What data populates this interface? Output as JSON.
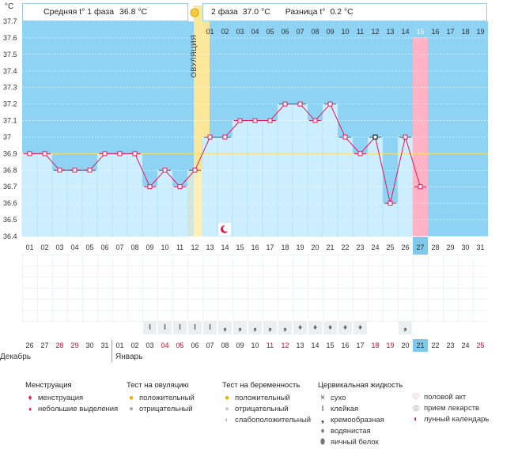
{
  "header": {
    "phase1_label": "Средняя t° 1 фаза",
    "phase1_value": "36.8 °C",
    "phase2_label": "2 фаза",
    "phase2_value": "37.0 °C",
    "diff_label": "Разница t°",
    "diff_value": "0.2 °C",
    "ovulation_label": "ОВУЛЯЦИЯ"
  },
  "chart_data": {
    "type": "line",
    "title": "",
    "unit_label": "°C",
    "ylim": [
      36.4,
      37.7
    ],
    "yticks": [
      "37.7",
      "37.6",
      "37.5",
      "37.4",
      "37.3",
      "37.2",
      "37.1",
      "37",
      "36.9",
      "36.8",
      "36.7",
      "36.6",
      "36.5",
      "36.4"
    ],
    "cycle_days": [
      "01",
      "02",
      "03",
      "04",
      "05",
      "06",
      "07",
      "08",
      "09",
      "10",
      "11",
      "12",
      "13",
      "14",
      "15",
      "16",
      "17",
      "18",
      "19",
      "20",
      "21",
      "22",
      "23",
      "24",
      "25",
      "26",
      "27",
      "28",
      "29",
      "30",
      "31"
    ],
    "ovulation_day": "12",
    "current_day": "27",
    "coverline": 36.9,
    "series": [
      {
        "name": "temperature",
        "values": [
          36.9,
          36.9,
          36.8,
          36.8,
          36.8,
          36.9,
          36.9,
          36.9,
          36.7,
          36.8,
          36.7,
          36.8,
          37.0,
          37.0,
          37.1,
          37.1,
          37.1,
          37.2,
          37.2,
          37.1,
          37.2,
          37.0,
          36.9,
          37.0,
          36.6,
          37.0,
          36.7
        ]
      }
    ],
    "phase2_days": [
      "01",
      "02",
      "03",
      "04",
      "05",
      "06",
      "07",
      "08",
      "09",
      "10",
      "11",
      "12",
      "13",
      "14",
      "15",
      "16",
      "17",
      "18",
      "19"
    ],
    "phase2_highlight": "15"
  },
  "mucus": {
    "symbols": [
      "I",
      "I",
      "I",
      "I",
      "I",
      "ɂ",
      "ɂ",
      "ɂ",
      "ɂ",
      "ɂ",
      "ʘ",
      "ʘ",
      "ʘ",
      "ʘ",
      "ʘ",
      "",
      "",
      "ɂ"
    ],
    "start_day_index": 8
  },
  "moon_day_index": 13,
  "calendar": {
    "dates": [
      "26",
      "27",
      "28",
      "29",
      "30",
      "31",
      "01",
      "02",
      "03",
      "04",
      "05",
      "06",
      "07",
      "08",
      "09",
      "10",
      "11",
      "12",
      "13",
      "14",
      "15",
      "16",
      "17",
      "18",
      "19",
      "20",
      "21",
      "22",
      "23",
      "24",
      "25"
    ],
    "red_indices": [
      2,
      3,
      9,
      10,
      16,
      17,
      23,
      24,
      30
    ],
    "today_index": 26,
    "month_dec": "Декабрь",
    "month_jan": "Январь"
  },
  "legend": {
    "menstruation": {
      "title": "Менструация",
      "items": [
        "менструация",
        "небольшие выделения"
      ]
    },
    "ovulation_test": {
      "title": "Тест на овуляцию",
      "items": [
        "положительный",
        "отрицательный"
      ]
    },
    "pregnancy_test": {
      "title": "Тест на беременность",
      "items": [
        "положительный",
        "отрицательный",
        "слабоположительный"
      ]
    },
    "cervical": {
      "title": "Цервикальная жидкость",
      "items": [
        "сухо",
        "клейкая",
        "кремообразная",
        "водянистая",
        "яичный белок"
      ]
    },
    "other": {
      "items": [
        "половой акт",
        "прием лекарств",
        "лунный календарь"
      ]
    }
  },
  "colors": {
    "bg_blue": "#8ed2f4",
    "bar": "#cceeff",
    "line": "#e3175b",
    "ovulation": "#fbe79a",
    "highlight": "#ffb3c4",
    "today": "#7fc8ea"
  }
}
